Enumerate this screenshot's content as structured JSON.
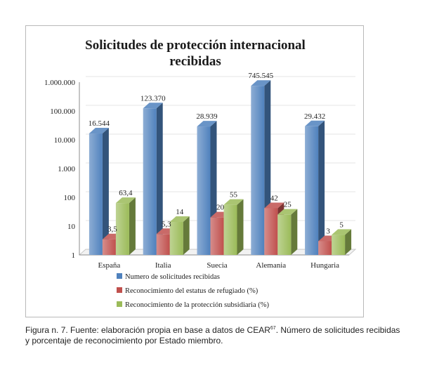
{
  "colors": {
    "series_1": "#4f81bd",
    "series_2": "#c0504d",
    "series_3": "#9bbb59"
  },
  "chart_data": {
    "type": "bar",
    "title_line_1": "Solicitudes de protección internacional",
    "title_line_2": "recibidas",
    "yscale": "log",
    "ylim": [
      1,
      1000000
    ],
    "ytick_labels": [
      "1",
      "10",
      "100",
      "1.000",
      "10.000",
      "100.000",
      "1.000.000"
    ],
    "categories": [
      "España",
      "Italia",
      "Suecia",
      "Alemania",
      "Hungaria"
    ],
    "series": [
      {
        "name": "Numero de solicitudes recibidas",
        "values": [
          16544,
          123370,
          28939,
          745545,
          29432
        ],
        "labels": [
          "16.544",
          "123.370",
          "28.939",
          "745.545",
          "29.432"
        ]
      },
      {
        "name": "Reconocimiento del estatus de refugiado (%)",
        "values": [
          3.5,
          5.3,
          20,
          42,
          3
        ],
        "labels": [
          "3,5",
          "5,3",
          "20",
          "42",
          "3"
        ]
      },
      {
        "name": "Reconocimiento de la protección subsidiaria (%)",
        "values": [
          63.4,
          14,
          55,
          25,
          5
        ],
        "labels": [
          "63,4",
          "14",
          "55",
          "25",
          "5"
        ]
      }
    ],
    "legend_position": "bottom"
  },
  "caption": {
    "prefix": "Figura n. 7. Fuente: elaboración propia en base a datos de CEAR",
    "footnote": "67",
    "suffix": ". Número de solicitudes recibidas",
    "line_2": "y porcentaje de reconocimiento por Estado miembro."
  }
}
